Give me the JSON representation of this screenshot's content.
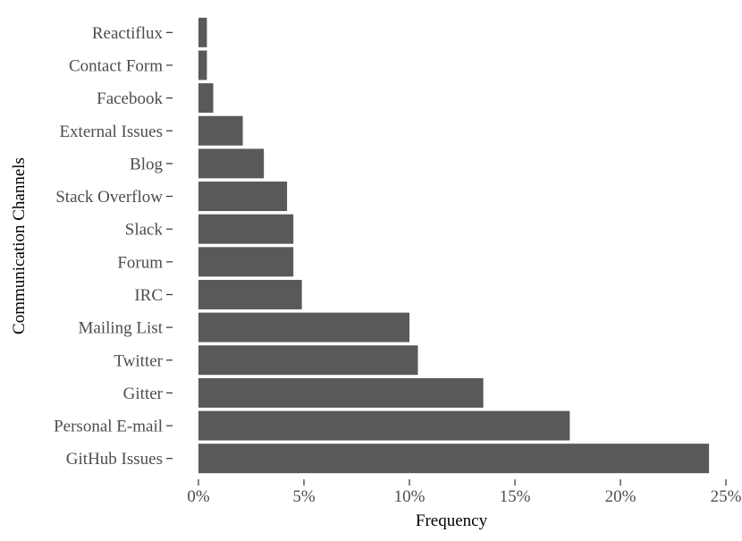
{
  "chart_data": {
    "type": "bar",
    "orientation": "horizontal",
    "xlabel": "Frequency",
    "ylabel": "Communication Channels",
    "categories": [
      "Reactiflux",
      "Contact Form",
      "Facebook",
      "External Issues",
      "Blog",
      "Stack Overflow",
      "Slack",
      "Forum",
      "IRC",
      "Mailing List",
      "Twitter",
      "Gitter",
      "Personal E-mail",
      "GitHub Issues"
    ],
    "values": [
      0.4,
      0.4,
      0.7,
      2.1,
      3.1,
      4.2,
      4.5,
      4.5,
      4.9,
      10.0,
      10.4,
      13.5,
      17.6,
      24.2
    ],
    "xlim": [
      0,
      25
    ],
    "xticks": [
      0,
      5,
      10,
      15,
      20,
      25
    ],
    "xtick_labels": [
      "0%",
      "5%",
      "10%",
      "15%",
      "20%",
      "25%"
    ],
    "grid": false,
    "bar_color": "#595959",
    "background": "#ffffff"
  }
}
